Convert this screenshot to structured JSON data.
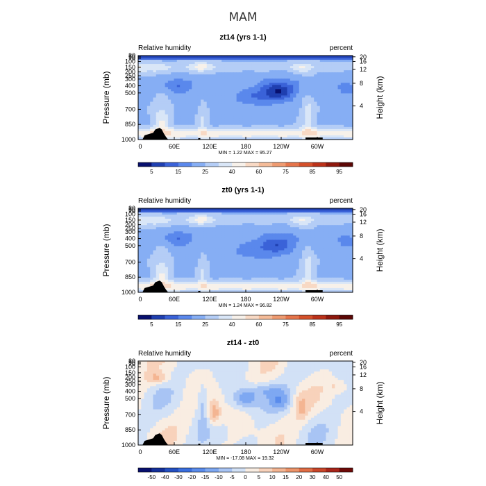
{
  "figure_title": "MAM",
  "chart_data": [
    {
      "type": "heatmap",
      "title": "zt14 (yrs 1-1)",
      "left_label": "Relative humidity",
      "right_label": "percent",
      "xlabel": "",
      "ylabel": "Pressure (mb)",
      "y2label": "Height (km)",
      "x_ticks": [
        "0",
        "60E",
        "120E",
        "180",
        "120W",
        "60W"
      ],
      "y_ticks": [
        "30",
        "50",
        "70",
        "100",
        "150",
        "200",
        "250",
        "300",
        "400",
        "500",
        "700",
        "850",
        "1000"
      ],
      "y2_ticks": [
        "20",
        "16",
        "12",
        "8",
        "4"
      ],
      "min_max_text": "MIN =    1.22   MAX =   95.27",
      "colorbar_levels": [
        "5",
        "15",
        "25",
        "40",
        "60",
        "75",
        "85",
        "95"
      ],
      "colorbar_colors": [
        "#08106e",
        "#1f3fb0",
        "#3a62d8",
        "#5a88ec",
        "#86aef4",
        "#b4cdf6",
        "#d9e6f7",
        "#f7f1ea",
        "#f8d9c4",
        "#f4bb98",
        "#ee9a70",
        "#e5744a",
        "#d4502a",
        "#bb3119",
        "#8e180d",
        "#5c0705"
      ],
      "value_min": 1.22,
      "value_max": 95.27
    },
    {
      "type": "heatmap",
      "title": "zt0 (yrs 1-1)",
      "left_label": "Relative humidity",
      "right_label": "percent",
      "xlabel": "",
      "ylabel": "Pressure (mb)",
      "y2label": "Height (km)",
      "x_ticks": [
        "0",
        "60E",
        "120E",
        "180",
        "120W",
        "60W"
      ],
      "y_ticks": [
        "30",
        "50",
        "70",
        "100",
        "150",
        "200",
        "250",
        "300",
        "400",
        "500",
        "700",
        "850",
        "1000"
      ],
      "y2_ticks": [
        "20",
        "16",
        "12",
        "8",
        "4"
      ],
      "min_max_text": "MIN =    1.24   MAX =   96.82",
      "colorbar_levels": [
        "5",
        "15",
        "25",
        "40",
        "60",
        "75",
        "85",
        "95"
      ],
      "colorbar_colors": [
        "#08106e",
        "#1f3fb0",
        "#3a62d8",
        "#5a88ec",
        "#86aef4",
        "#b4cdf6",
        "#d9e6f7",
        "#f7f1ea",
        "#f8d9c4",
        "#f4bb98",
        "#ee9a70",
        "#e5744a",
        "#d4502a",
        "#bb3119",
        "#8e180d",
        "#5c0705"
      ],
      "value_min": 1.24,
      "value_max": 96.82
    },
    {
      "type": "heatmap",
      "title": "zt14 - zt0",
      "left_label": "Relative humidity",
      "right_label": "percent",
      "xlabel": "",
      "ylabel": "Pressure (mb)",
      "y2label": "Height (km)",
      "x_ticks": [
        "0",
        "60E",
        "120E",
        "180",
        "120W",
        "60W"
      ],
      "y_ticks": [
        "30",
        "50",
        "70",
        "100",
        "150",
        "200",
        "250",
        "300",
        "400",
        "500",
        "700",
        "850",
        "1000"
      ],
      "y2_ticks": [
        "20",
        "16",
        "12",
        "8",
        "4"
      ],
      "min_max_text": "MIN =  -17.08   MAX =   19.32",
      "colorbar_levels": [
        "-50",
        "-40",
        "-30",
        "-20",
        "-15",
        "-10",
        "-5",
        "0",
        "5",
        "10",
        "15",
        "20",
        "30",
        "40",
        "50"
      ],
      "colorbar_colors": [
        "#08106e",
        "#14309a",
        "#2450c2",
        "#3a6ede",
        "#5a8cec",
        "#7ea8f2",
        "#a8c4f4",
        "#d2e1f6",
        "#f9ede2",
        "#f8d2bb",
        "#f4b592",
        "#ed946a",
        "#e06d45",
        "#c9462a",
        "#a8251a",
        "#6e0a08"
      ],
      "value_min": -17.08,
      "value_max": 19.32
    }
  ]
}
